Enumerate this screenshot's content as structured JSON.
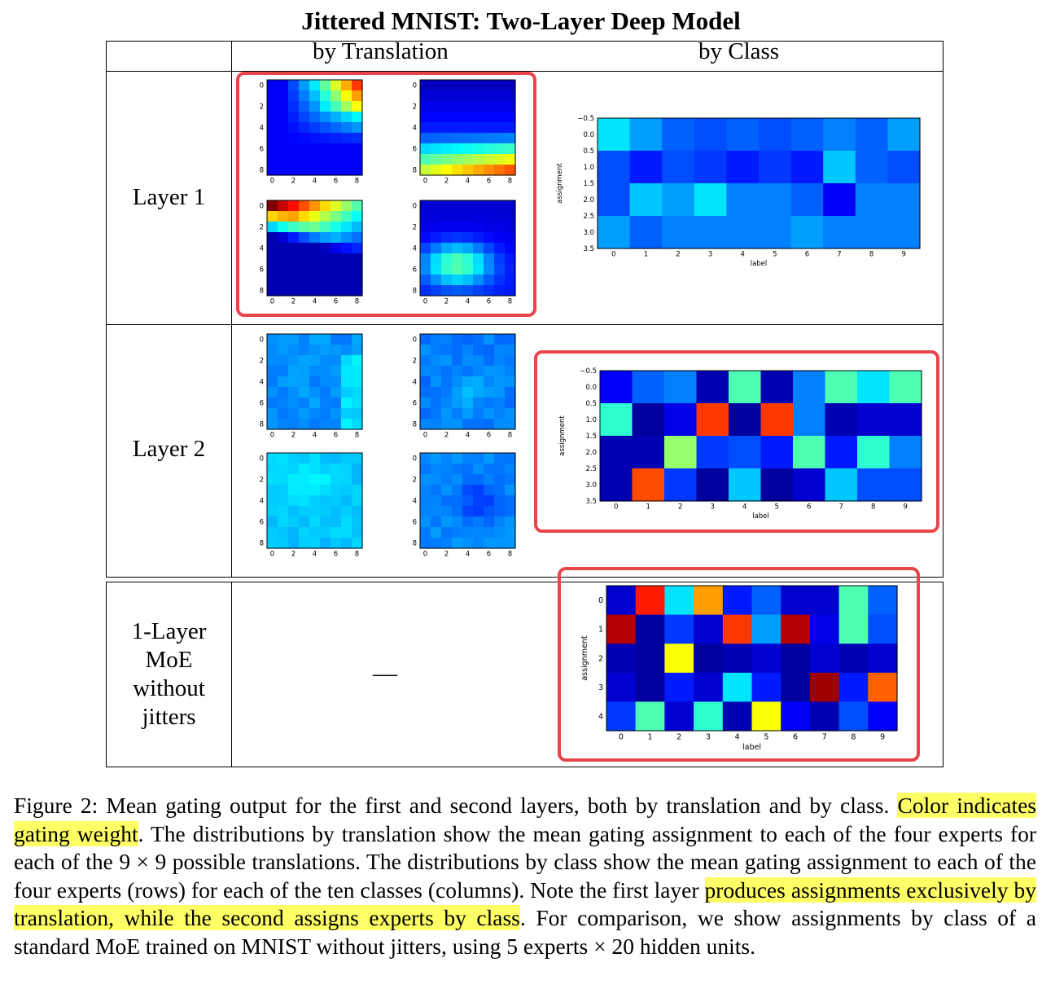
{
  "title": "Jittered MNIST: Two-Layer Deep Model",
  "column_headers": {
    "translation": "by Translation",
    "class": "by Class"
  },
  "rows": {
    "layer1": "Layer 1",
    "layer2": "Layer 2",
    "moe": [
      "1-Layer",
      "MoE",
      "without",
      "jitters"
    ],
    "moe_translation_cell": "—"
  },
  "colors": {
    "highlight_box": "#e8454a",
    "caption_highlight": "#ffff66"
  },
  "chart_data": [
    {
      "type": "heatmap",
      "id": "l1-trans",
      "label": "Layer 1 by translation (4 experts, 9×9 translations)",
      "x_ticks": [
        "0",
        "2",
        "4",
        "6",
        "8"
      ],
      "y_ticks": [
        "0",
        "2",
        "4",
        "6",
        "8"
      ],
      "colormap": "jet",
      "experts": [
        {
          "expert": 0,
          "description": "high at top-right: high rows 0-3, cols 5-8"
        },
        {
          "expert": 1,
          "description": "high in bottom rows 6-8"
        },
        {
          "expert": 2,
          "description": "high at top-left, row 0"
        },
        {
          "expert": 3,
          "description": "medium in centre-bottom rows 4-7"
        }
      ]
    },
    {
      "type": "heatmap",
      "id": "l1-class",
      "xlabel": "label",
      "ylabel": "assignment",
      "x_ticks": [
        "0",
        "1",
        "2",
        "3",
        "4",
        "5",
        "6",
        "7",
        "8",
        "9"
      ],
      "y_ticks": [
        "−0.5",
        "0.0",
        "0.5",
        "1.0",
        "1.5",
        "2.0",
        "2.5",
        "3.0",
        "3.5"
      ],
      "z": [
        [
          0.35,
          0.28,
          0.22,
          0.2,
          0.22,
          0.2,
          0.22,
          0.25,
          0.22,
          0.28
        ],
        [
          0.2,
          0.15,
          0.2,
          0.18,
          0.15,
          0.18,
          0.15,
          0.32,
          0.22,
          0.2
        ],
        [
          0.2,
          0.32,
          0.28,
          0.35,
          0.25,
          0.25,
          0.22,
          0.12,
          0.25,
          0.25
        ],
        [
          0.28,
          0.22,
          0.25,
          0.25,
          0.25,
          0.25,
          0.28,
          0.25,
          0.25,
          0.25
        ]
      ]
    },
    {
      "type": "heatmap",
      "id": "l2-trans",
      "label": "Layer 2 by translation (4 experts, 9×9 translations)",
      "x_ticks": [
        "0",
        "2",
        "4",
        "6",
        "8"
      ],
      "y_ticks": [
        "0",
        "2",
        "4",
        "6",
        "8"
      ],
      "colormap": "jet",
      "experts": [
        {
          "expert": 0,
          "description": "mostly uniform, light at right edge"
        },
        {
          "expert": 1,
          "description": "mostly uniform, slightly lighter centre"
        },
        {
          "expert": 2,
          "description": "mostly uniform, light centre"
        },
        {
          "expert": 3,
          "description": "mostly uniform, darker centre"
        }
      ]
    },
    {
      "type": "heatmap",
      "id": "l2-class",
      "xlabel": "label",
      "ylabel": "assignment",
      "x_ticks": [
        "0",
        "1",
        "2",
        "3",
        "4",
        "5",
        "6",
        "7",
        "8",
        "9"
      ],
      "y_ticks": [
        "−0.5",
        "0.0",
        "0.5",
        "1.0",
        "1.5",
        "2.0",
        "2.5",
        "3.0",
        "3.5"
      ],
      "z": [
        [
          0.12,
          0.22,
          0.25,
          0.05,
          0.45,
          0.05,
          0.25,
          0.45,
          0.35,
          0.45
        ],
        [
          0.42,
          0.03,
          0.1,
          0.82,
          0.03,
          0.82,
          0.25,
          0.05,
          0.08,
          0.08
        ],
        [
          0.05,
          0.05,
          0.52,
          0.18,
          0.2,
          0.15,
          0.45,
          0.15,
          0.42,
          0.25
        ],
        [
          0.05,
          0.8,
          0.18,
          0.03,
          0.32,
          0.03,
          0.08,
          0.32,
          0.2,
          0.2
        ]
      ]
    },
    {
      "type": "heatmap",
      "id": "moe-class",
      "xlabel": "label",
      "ylabel": "assignment",
      "x_ticks": [
        "0",
        "1",
        "2",
        "3",
        "4",
        "5",
        "6",
        "7",
        "8",
        "9"
      ],
      "y_ticks": [
        "0",
        "1",
        "2",
        "3",
        "4"
      ],
      "z": [
        [
          0.08,
          0.85,
          0.35,
          0.72,
          0.15,
          0.22,
          0.08,
          0.08,
          0.45,
          0.22
        ],
        [
          0.95,
          0.03,
          0.18,
          0.08,
          0.82,
          0.28,
          0.95,
          0.1,
          0.45,
          0.2
        ],
        [
          0.05,
          0.03,
          0.62,
          0.03,
          0.05,
          0.08,
          0.03,
          0.08,
          0.05,
          0.08
        ],
        [
          0.08,
          0.03,
          0.15,
          0.08,
          0.35,
          0.15,
          0.03,
          0.97,
          0.15,
          0.78
        ],
        [
          0.18,
          0.45,
          0.08,
          0.42,
          0.05,
          0.62,
          0.12,
          0.05,
          0.2,
          0.12
        ]
      ]
    }
  ],
  "caption": {
    "prefix": "Figure 2:  Mean gating output for the first and second layers, both by translation and by class. ",
    "hl1": "Color indicates gating weight",
    "mid": ". The distributions by translation show the mean gating assignment to each of the four experts for each of the 9 × 9 possible translations. The distributions by class show the mean gating assignment to each of the four experts (rows) for each of the ten classes (columns).  Note the first layer ",
    "hl2": "produces assignments exclusively by translation, while the second assigns experts by class",
    "suffix": ". For comparison, we show assignments by class of a standard MoE trained on MNIST without jitters, using 5 experts × 20 hidden units."
  }
}
